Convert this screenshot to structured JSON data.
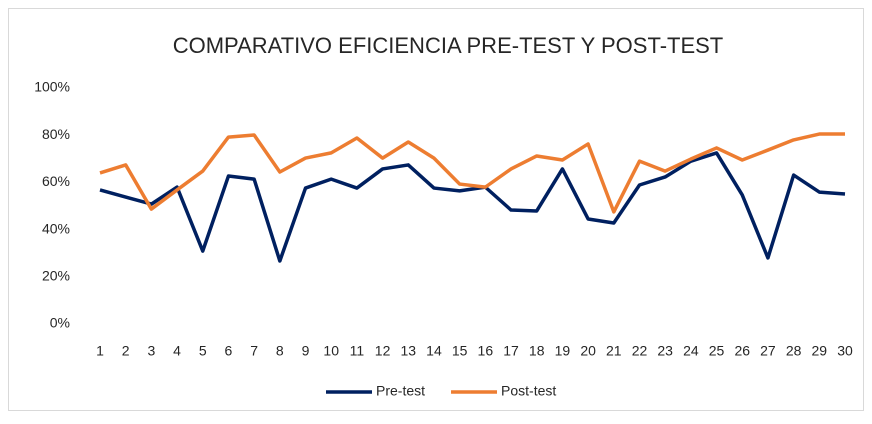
{
  "chart_data": {
    "type": "line",
    "title": "COMPARATIVO EFICIENCIA  PRE-TEST Y POST-TEST",
    "categories": [
      "1",
      "2",
      "3",
      "4",
      "5",
      "6",
      "7",
      "8",
      "9",
      "10",
      "11",
      "12",
      "13",
      "14",
      "15",
      "16",
      "17",
      "18",
      "19",
      "20",
      "21",
      "22",
      "23",
      "24",
      "25",
      "26",
      "27",
      "28",
      "29",
      "30"
    ],
    "series": [
      {
        "name": "Pre-test",
        "color": "#002060",
        "values": [
          56.8,
          53.8,
          50.8,
          58,
          30.9,
          62.7,
          61.4,
          26.7,
          57.6,
          61.4,
          57.6,
          65.7,
          67.4,
          57.6,
          56.4,
          58,
          48.3,
          47.9,
          65.7,
          44.5,
          42.8,
          58.9,
          62.3,
          69,
          72.5,
          54.7,
          28,
          63.1,
          55.9,
          55.1
        ]
      },
      {
        "name": "Post-test",
        "color": "#ed7d31",
        "values": [
          64,
          67.4,
          48.7,
          56.8,
          64.8,
          79.2,
          80.1,
          64.4,
          70.3,
          72.5,
          78.8,
          70.3,
          77.1,
          70.3,
          59.3,
          58,
          65.7,
          71.2,
          69.5,
          76.3,
          47.5,
          69,
          64.8,
          69.9,
          74.6,
          69.5,
          73.7,
          78,
          80.5,
          80.5
        ]
      }
    ],
    "ylim": [
      0,
      100
    ],
    "yticks": [
      {
        "value": 0,
        "label": "0%"
      },
      {
        "value": 20,
        "label": "20%"
      },
      {
        "value": 40,
        "label": "40%"
      },
      {
        "value": 60,
        "label": "60%"
      },
      {
        "value": 80,
        "label": "80%"
      },
      {
        "value": 100,
        "label": "100%"
      }
    ],
    "grid": false,
    "legend": "bottom"
  }
}
